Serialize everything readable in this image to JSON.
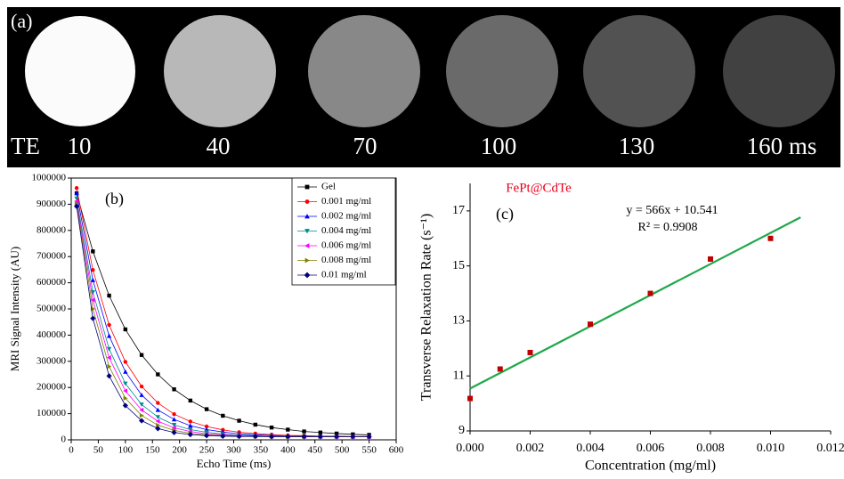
{
  "panel_a": {
    "label": "(a)",
    "te_label": "TE",
    "times": [
      "10",
      "40",
      "70",
      "100",
      "130",
      "160 ms"
    ]
  },
  "chart_data": [
    {
      "type": "line",
      "panel_label": "(b)",
      "x_label": "Echo Time (ms)",
      "y_label": "MRI Signal Intensity (AU)",
      "xlim": [
        0,
        600
      ],
      "xticks": [
        0,
        50,
        100,
        150,
        200,
        250,
        300,
        350,
        400,
        450,
        500,
        550,
        600
      ],
      "ylim": [
        0,
        1000000
      ],
      "yticks": [
        0,
        100000,
        200000,
        300000,
        400000,
        500000,
        600000,
        700000,
        800000,
        900000,
        1000000
      ],
      "legend": "upper right",
      "x": [
        10,
        40,
        70,
        100,
        130,
        160,
        190,
        220,
        250,
        280,
        310,
        340,
        370,
        400,
        430,
        460,
        490,
        520,
        550
      ],
      "series": [
        {
          "name": "Gel",
          "color": "#000000",
          "marker": "square",
          "values": [
            942000,
            720000,
            551000,
            422000,
            324000,
            250000,
            193000,
            150000,
            117000,
            92000,
            73000,
            58000,
            47000,
            39000,
            32000,
            28000,
            24000,
            21000,
            19000
          ]
        },
        {
          "name": "0.001 mg/ml",
          "color": "#ff0000",
          "marker": "circle",
          "values": [
            962000,
            649000,
            439000,
            298000,
            204000,
            141000,
            98000,
            70000,
            51000,
            38000,
            29000,
            24000,
            20000,
            17000,
            16000,
            14000,
            14000,
            13000,
            13000
          ]
        },
        {
          "name": "0.002 mg/ml",
          "color": "#0000ff",
          "marker": "triangle-up",
          "values": [
            942000,
            610000,
            397000,
            260000,
            171000,
            114000,
            78000,
            54000,
            39000,
            30000,
            23000,
            19000,
            17000,
            15000,
            14000,
            13000,
            13000,
            12000,
            12000
          ]
        },
        {
          "name": "0.004 mg/ml",
          "color": "#008b8b",
          "marker": "triangle-down",
          "values": [
            922000,
            564000,
            347000,
            215000,
            135000,
            87000,
            57000,
            39000,
            29000,
            22000,
            18000,
            16000,
            14000,
            13000,
            13000,
            12000,
            12000,
            12000,
            12000
          ]
        },
        {
          "name": "0.006 mg/ml",
          "color": "#ff00ff",
          "marker": "triangle-left",
          "values": [
            912000,
            534000,
            314000,
            187000,
            114000,
            71000,
            46000,
            32000,
            23000,
            19000,
            16000,
            14000,
            13000,
            13000,
            12000,
            12000,
            12000,
            12000,
            12000
          ]
        },
        {
          "name": "0.008 mg/ml",
          "color": "#808000",
          "marker": "triangle-right",
          "values": [
            902000,
            500000,
            280000,
            159000,
            93000,
            56000,
            36000,
            25000,
            19000,
            16000,
            14000,
            13000,
            13000,
            12000,
            12000,
            12000,
            12000,
            12000,
            12000
          ]
        },
        {
          "name": "0.01 mg/ml",
          "color": "#000080",
          "marker": "diamond",
          "values": [
            892000,
            464000,
            244000,
            131000,
            73000,
            43000,
            28000,
            20000,
            16000,
            14000,
            13000,
            13000,
            12000,
            12000,
            12000,
            12000,
            12000,
            12000,
            12000
          ]
        }
      ]
    },
    {
      "type": "scatter",
      "panel_label": "(c)",
      "title": "FePt@CdTe",
      "title_color": "#e8001c",
      "equation": "y = 566x + 10.541",
      "r_squared": "R² = 0.9908",
      "x_label": "Concentration (mg/ml)",
      "y_label": "Transverse Relaxation Rate (s⁻¹)",
      "xlim": [
        0,
        0.012
      ],
      "xticks": [
        {
          "value": 0,
          "label": "0.000"
        },
        {
          "value": 0.002,
          "label": "0.002"
        },
        {
          "value": 0.004,
          "label": "0.004"
        },
        {
          "value": 0.006,
          "label": "0.006"
        },
        {
          "value": 0.008,
          "label": "0.008"
        },
        {
          "value": 0.01,
          "label": "0.010"
        },
        {
          "value": 0.012,
          "label": "0.012"
        }
      ],
      "ylim": [
        9,
        18
      ],
      "yticks": [
        9,
        11,
        13,
        15,
        17
      ],
      "x": [
        0,
        0.001,
        0.002,
        0.004,
        0.006,
        0.008,
        0.01
      ],
      "values": [
        10.18,
        11.25,
        11.85,
        12.88,
        14.0,
        15.25,
        16.0
      ],
      "color": "#c00000",
      "fit": {
        "x": [
          0,
          0.011
        ],
        "values": [
          10.541,
          16.767
        ],
        "color": "#1fa84a"
      }
    }
  ]
}
